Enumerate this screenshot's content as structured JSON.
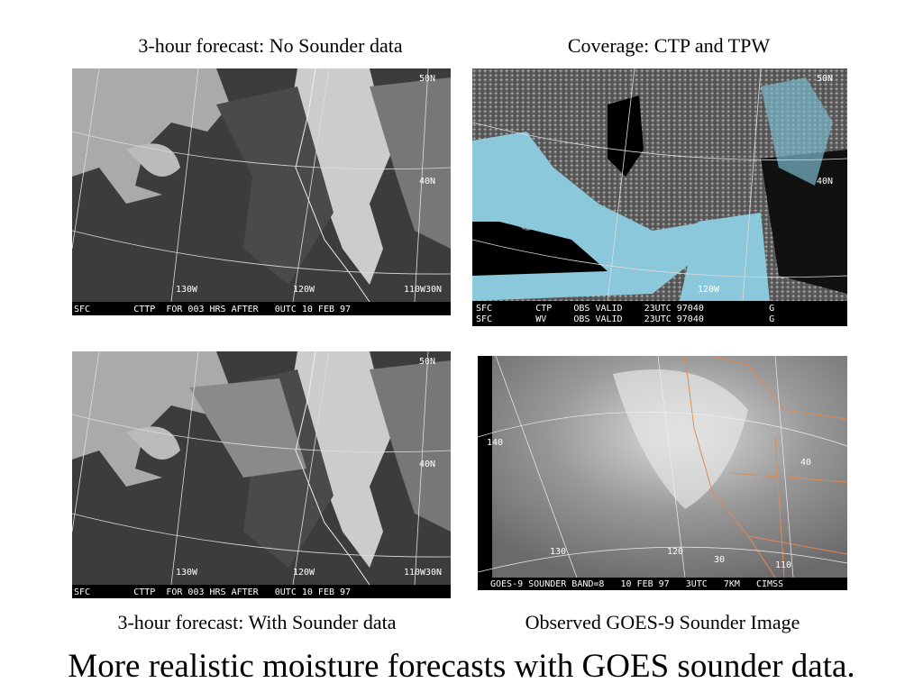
{
  "panels": [
    {
      "caption": "3-hour forecast: No Sounder data",
      "labels": [
        "50N",
        "40N",
        "130W",
        "120W",
        "110W",
        "30N"
      ],
      "footer": [
        "SFC        CTTP  FOR 003 HRS AFTER   0UTC 10 FEB 97"
      ]
    },
    {
      "caption": "Coverage: CTP and TPW",
      "labels": [
        "50N",
        "40N",
        "120W"
      ],
      "footer": [
        "SFC        CTP    OBS VALID    23UTC 97040            G",
        "SFC        WV     OBS VALID    23UTC 97040            G"
      ]
    },
    {
      "caption": "3-hour forecast: With Sounder data",
      "labels": [
        "50N",
        "40N",
        "130W",
        "120W",
        "110W",
        "30N"
      ],
      "footer": [
        "SFC        CTTP  FOR 003 HRS AFTER   0UTC 10 FEB 97"
      ]
    },
    {
      "caption": "Observed GOES-9 Sounder Image",
      "labels": [
        "140",
        "130",
        "120",
        "110",
        "40",
        "30"
      ],
      "footer": [
        "GOES-9 SOUNDER BAND=8   10 FEB 97   3UTC   7KM   CIMSS"
      ]
    }
  ],
  "summary": "More realistic moisture forecasts with GOES sounder data."
}
